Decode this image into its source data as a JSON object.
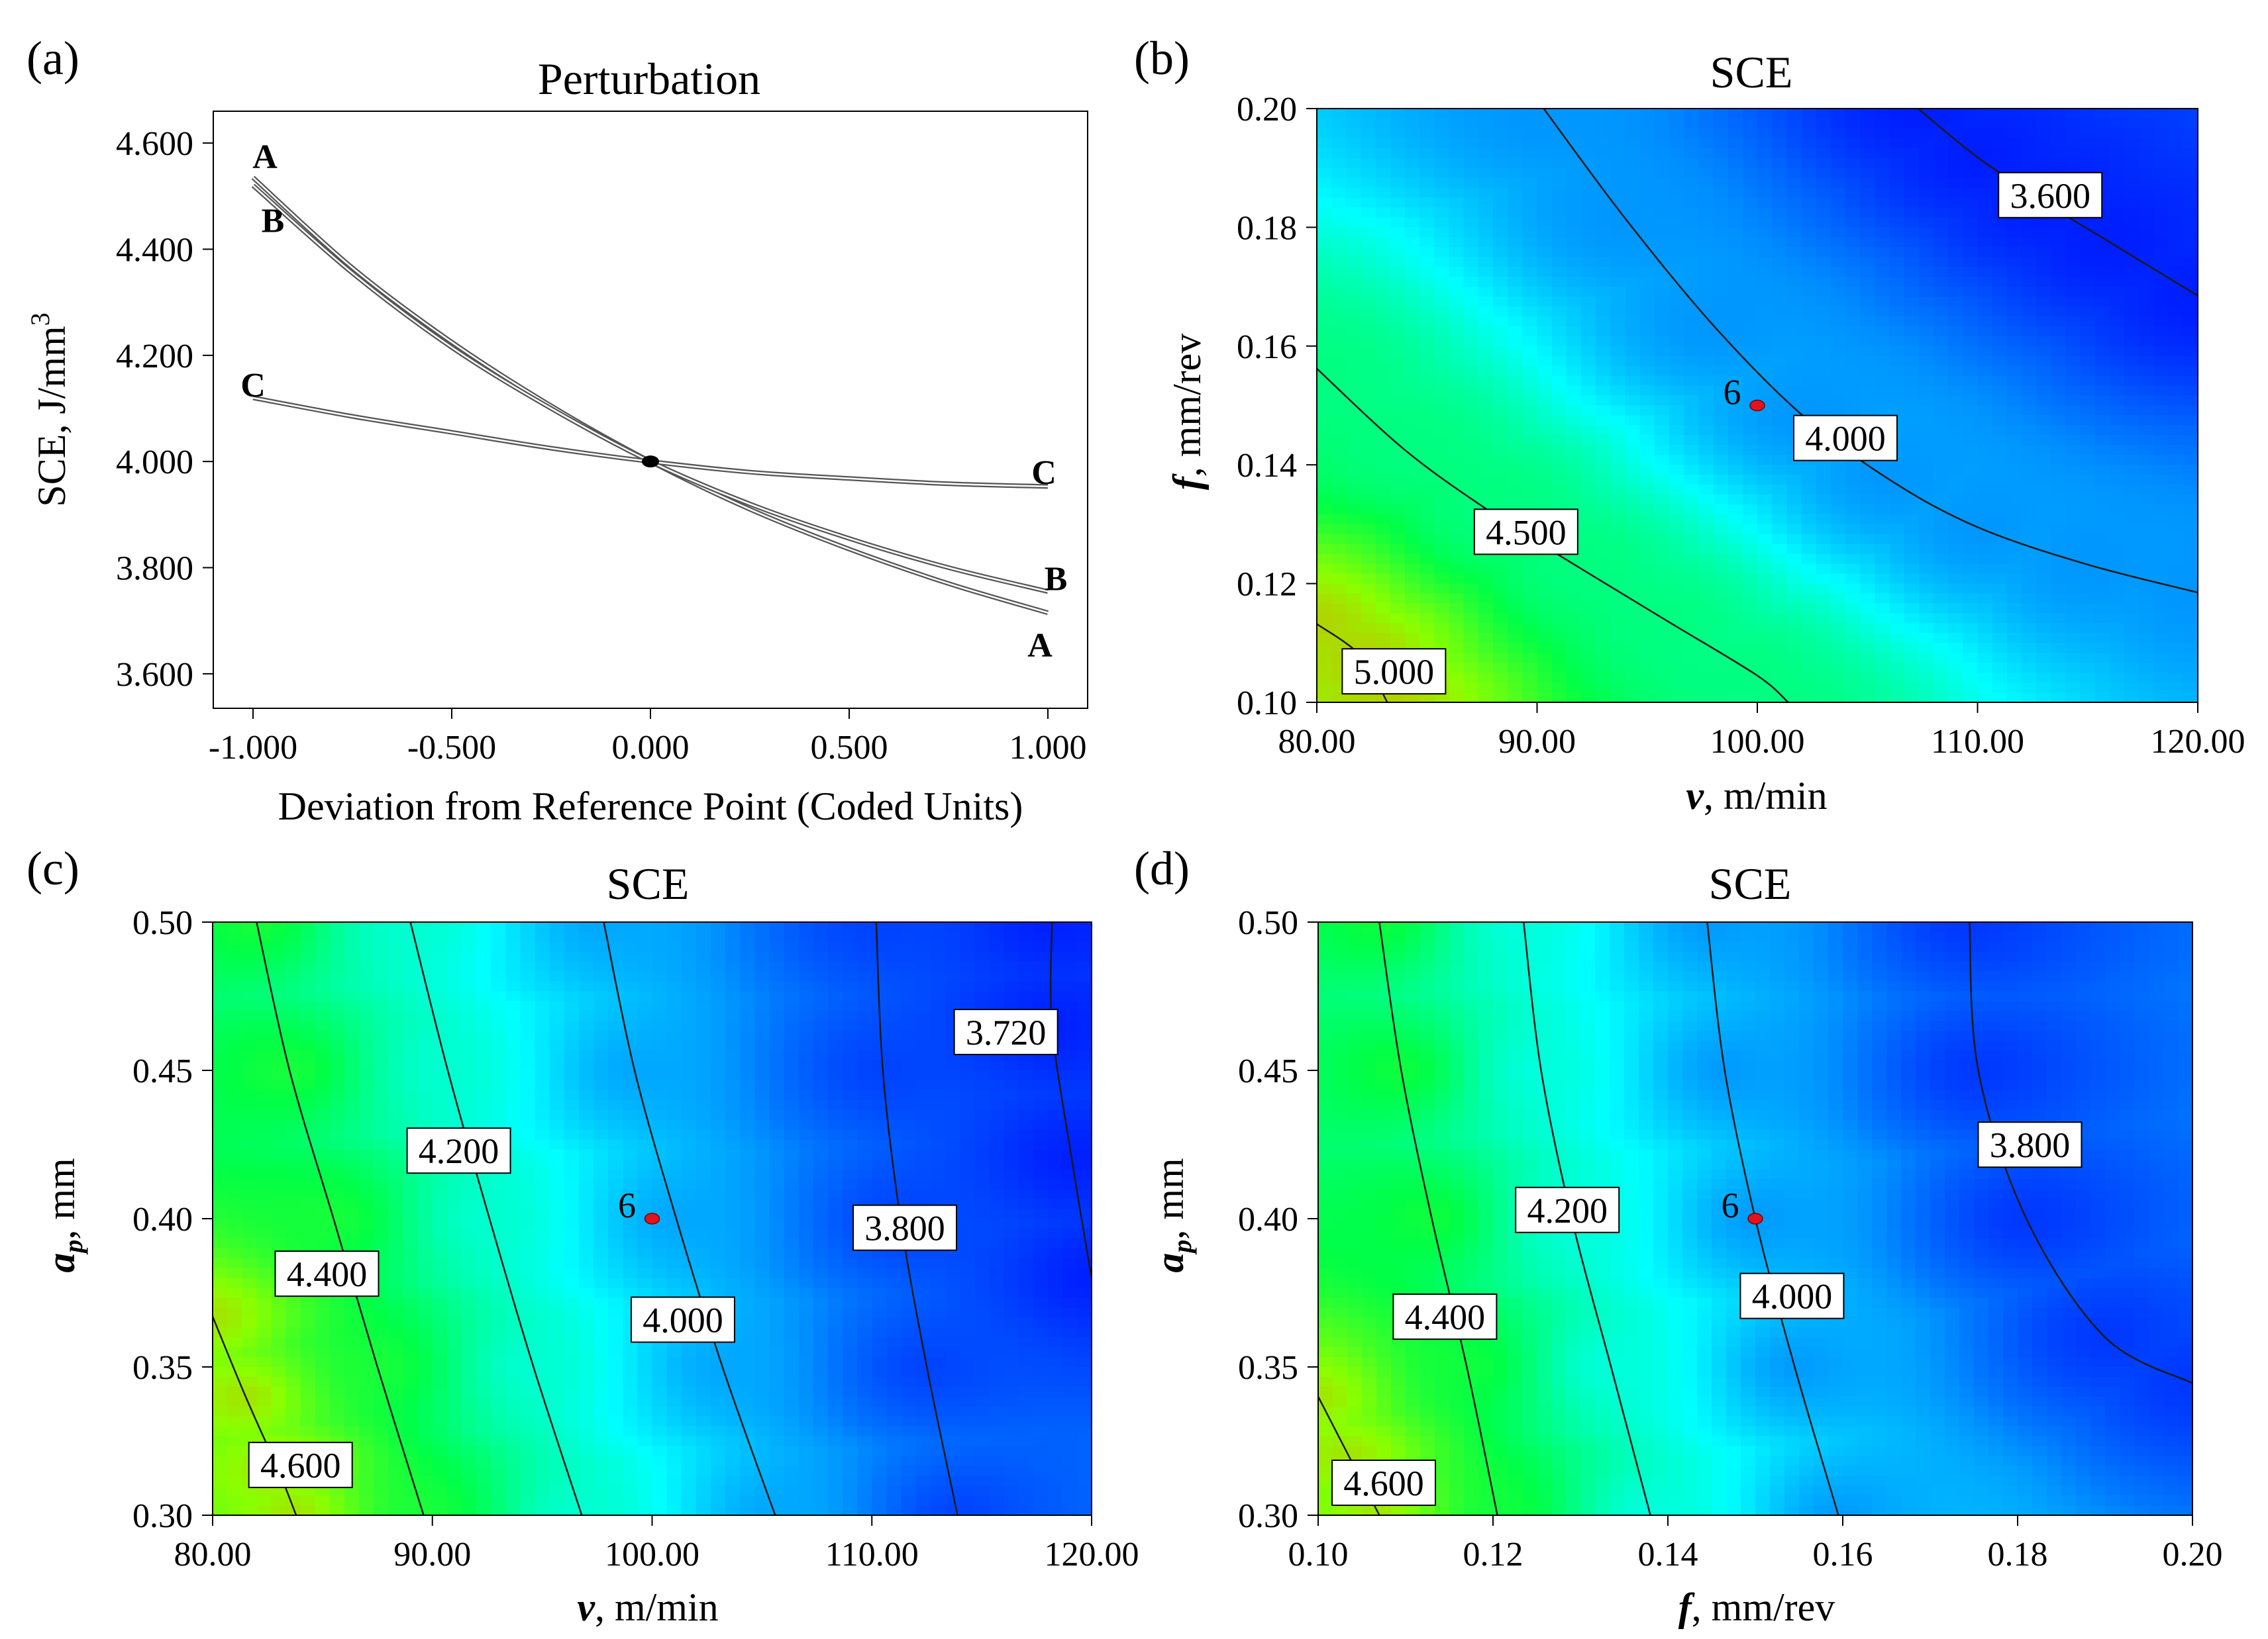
{
  "panels": {
    "a": {
      "label": "(a)"
    },
    "b": {
      "label": "(b)"
    },
    "c": {
      "label": "(c)"
    },
    "d": {
      "label": "(d)"
    }
  },
  "chart_data": [
    {
      "id": "a",
      "type": "line",
      "title": "Perturbation",
      "xlabel": "Deviation from Reference Point (Coded Units)",
      "ylabel": "SCE, J/mm",
      "ylabel_sup": "3",
      "xlim": [
        -1.1,
        1.1
      ],
      "ylim": [
        3.535,
        4.66
      ],
      "xticks": [
        -1,
        -0.5,
        0,
        0.5,
        1
      ],
      "xtick_labels": [
        "-1.000",
        "-0.500",
        "0.000",
        "0.500",
        "1.000"
      ],
      "yticks": [
        3.6,
        3.8,
        4.0,
        4.2,
        4.4,
        4.6
      ],
      "ytick_labels": [
        "3.600",
        "3.800",
        "4.000",
        "4.200",
        "4.400",
        "4.600"
      ],
      "reference_point": {
        "x": 0,
        "y": 4.0
      },
      "series": [
        {
          "name": "A",
          "x": [
            -1,
            -0.75,
            -0.5,
            -0.25,
            0,
            0.25,
            0.5,
            0.75,
            1
          ],
          "y": [
            4.535,
            4.365,
            4.225,
            4.105,
            4.0,
            3.91,
            3.835,
            3.77,
            3.715
          ]
        },
        {
          "name": "B",
          "x": [
            -1,
            -0.75,
            -0.5,
            -0.25,
            0,
            0.25,
            0.5,
            0.75,
            1
          ],
          "y": [
            4.52,
            4.355,
            4.215,
            4.1,
            4.0,
            3.92,
            3.855,
            3.8,
            3.755
          ]
        },
        {
          "name": "C",
          "x": [
            -1,
            -0.75,
            -0.5,
            -0.25,
            0,
            0.25,
            0.5,
            0.75,
            1
          ],
          "y": [
            4.12,
            4.085,
            4.055,
            4.025,
            4.0,
            3.98,
            3.968,
            3.958,
            3.953
          ]
        }
      ],
      "curve_labels": [
        {
          "text": "A",
          "x": -0.97,
          "y": 4.575
        },
        {
          "text": "B",
          "x": -0.95,
          "y": 4.455
        },
        {
          "text": "C",
          "x": -1.0,
          "y": 4.145
        },
        {
          "text": "C",
          "x": 0.99,
          "y": 3.98
        },
        {
          "text": "B",
          "x": 1.02,
          "y": 3.78
        },
        {
          "text": "A",
          "x": 0.98,
          "y": 3.655
        }
      ]
    },
    {
      "id": "b",
      "type": "heatmap",
      "title": "SCE",
      "xlabel_italic": "v",
      "xlabel_rest": ", m/min",
      "ylabel_italic": "f",
      "ylabel_rest": ", mm/rev",
      "xlim": [
        80,
        120
      ],
      "ylim": [
        0.1,
        0.2
      ],
      "xticks": [
        80,
        90,
        100,
        110,
        120
      ],
      "xtick_labels": [
        "80.00",
        "90.00",
        "100.00",
        "110.00",
        "120.00"
      ],
      "yticks": [
        0.1,
        0.12,
        0.14,
        0.16,
        0.18,
        0.2
      ],
      "ytick_labels": [
        "0.10",
        "0.12",
        "0.14",
        "0.16",
        "0.18",
        "0.20"
      ],
      "value_range": [
        3.5,
        5.2
      ],
      "contours": [
        {
          "level": "5.000",
          "points": [
            [
              80,
              0.1132
            ],
            [
              82,
              0.1078
            ],
            [
              83.2,
              0.1
            ]
          ],
          "label_at": [
            83.5,
            0.105
          ]
        },
        {
          "level": "4.500",
          "points": [
            [
              80,
              0.1562
            ],
            [
              84,
              0.1425
            ],
            [
              88,
              0.1318
            ],
            [
              92,
              0.1225
            ],
            [
              96,
              0.1135
            ],
            [
              100,
              0.1045
            ],
            [
              101.4,
              0.1
            ]
          ],
          "label_at": [
            89.5,
            0.1285
          ]
        },
        {
          "level": "4.000",
          "points": [
            [
              90.3,
              0.2
            ],
            [
              94,
              0.1815
            ],
            [
              98,
              0.1635
            ],
            [
              102,
              0.1485
            ],
            [
              106,
              0.1375
            ],
            [
              110,
              0.1295
            ],
            [
              115,
              0.1232
            ],
            [
              120,
              0.1185
            ]
          ],
          "label_at": [
            104,
            0.1443
          ]
        },
        {
          "level": "3.600",
          "points": [
            [
              107.3,
              0.2
            ],
            [
              110,
              0.1918
            ],
            [
              113,
              0.1843
            ],
            [
              116,
              0.1775
            ],
            [
              120,
              0.1685
            ]
          ],
          "label_at": [
            113.3,
            0.1852
          ]
        }
      ],
      "design_point": {
        "x": 100,
        "y": 0.15,
        "label": "6"
      }
    },
    {
      "id": "c",
      "type": "heatmap",
      "title": "SCE",
      "xlabel_italic": "v",
      "xlabel_rest": ", m/min",
      "ylabel_italic": "a",
      "ylabel_sub": "p",
      "ylabel_rest": ", mm",
      "xlim": [
        80,
        120
      ],
      "ylim": [
        0.3,
        0.5
      ],
      "xticks": [
        80,
        90,
        100,
        110,
        120
      ],
      "xtick_labels": [
        "80.00",
        "90.00",
        "100.00",
        "110.00",
        "120.00"
      ],
      "yticks": [
        0.3,
        0.35,
        0.4,
        0.45,
        0.5
      ],
      "ytick_labels": [
        "0.30",
        "0.35",
        "0.40",
        "0.45",
        "0.50"
      ],
      "value_range": [
        3.65,
        4.75
      ],
      "contours": [
        {
          "level": "4.600",
          "points": [
            [
              80,
              0.367
            ],
            [
              81.5,
              0.34
            ],
            [
              83,
              0.315
            ],
            [
              83.8,
              0.3
            ]
          ],
          "label_at": [
            84,
            0.3165
          ]
        },
        {
          "level": "4.400",
          "points": [
            [
              82,
              0.5
            ],
            [
              83.5,
              0.45
            ],
            [
              85.5,
              0.4
            ],
            [
              87.5,
              0.35
            ],
            [
              89.6,
              0.3
            ]
          ],
          "label_at": [
            85.2,
            0.381
          ]
        },
        {
          "level": "4.200",
          "points": [
            [
              89,
              0.5
            ],
            [
              90.7,
              0.45
            ],
            [
              92.6,
              0.4
            ],
            [
              94.6,
              0.35
            ],
            [
              96.8,
              0.3
            ]
          ],
          "label_at": [
            91.2,
            0.4225
          ]
        },
        {
          "level": "4.000",
          "points": [
            [
              97.8,
              0.5
            ],
            [
              99.2,
              0.45
            ],
            [
              101.1,
              0.4
            ],
            [
              103.2,
              0.35
            ],
            [
              105.6,
              0.3
            ]
          ],
          "label_at": [
            101.4,
            0.3655
          ]
        },
        {
          "level": "3.800",
          "points": [
            [
              110.2,
              0.5
            ],
            [
              110.5,
              0.45
            ],
            [
              111.3,
              0.4
            ],
            [
              112.5,
              0.35
            ],
            [
              113.9,
              0.3
            ]
          ],
          "label_at": [
            111.5,
            0.3965
          ]
        },
        {
          "level": "3.720",
          "points": [
            [
              118.2,
              0.5
            ],
            [
              118.2,
              0.465
            ],
            [
              119.1,
              0.42
            ],
            [
              120,
              0.38
            ]
          ],
          "label_at": [
            116.1,
            0.4625
          ]
        }
      ],
      "design_point": {
        "x": 100,
        "y": 0.4,
        "label": "6"
      }
    },
    {
      "id": "d",
      "type": "heatmap",
      "title": "SCE",
      "xlabel_italic": "f",
      "xlabel_rest": ", mm/rev",
      "ylabel_italic": "a",
      "ylabel_sub": "p",
      "ylabel_rest": ", mm",
      "xlim": [
        0.1,
        0.2
      ],
      "ylim": [
        0.3,
        0.5
      ],
      "xticks": [
        0.1,
        0.12,
        0.14,
        0.16,
        0.18,
        0.2
      ],
      "xtick_labels": [
        "0.10",
        "0.12",
        "0.14",
        "0.16",
        "0.18",
        "0.20"
      ],
      "yticks": [
        0.3,
        0.35,
        0.4,
        0.45,
        0.5
      ],
      "ytick_labels": [
        "0.30",
        "0.35",
        "0.40",
        "0.45",
        "0.50"
      ],
      "value_range": [
        3.68,
        4.75
      ],
      "contours": [
        {
          "level": "4.600",
          "points": [
            [
              0.1,
              0.34
            ],
            [
              0.1035,
              0.32
            ],
            [
              0.107,
              0.3
            ]
          ],
          "label_at": [
            0.1075,
            0.3105
          ]
        },
        {
          "level": "4.400",
          "points": [
            [
              0.107,
              0.5
            ],
            [
              0.1095,
              0.45
            ],
            [
              0.113,
              0.4
            ],
            [
              0.117,
              0.35
            ],
            [
              0.1205,
              0.3
            ]
          ],
          "label_at": [
            0.1145,
            0.3665
          ]
        },
        {
          "level": "4.200",
          "points": [
            [
              0.1235,
              0.5
            ],
            [
              0.1255,
              0.45
            ],
            [
              0.129,
              0.4
            ],
            [
              0.1335,
              0.35
            ],
            [
              0.138,
              0.3
            ]
          ],
          "label_at": [
            0.1285,
            0.4025
          ]
        },
        {
          "level": "4.000",
          "points": [
            [
              0.1445,
              0.5
            ],
            [
              0.1465,
              0.45
            ],
            [
              0.15,
              0.4
            ],
            [
              0.1545,
              0.35
            ],
            [
              0.1595,
              0.3
            ]
          ],
          "label_at": [
            0.1542,
            0.3735
          ]
        },
        {
          "level": "3.800",
          "points": [
            [
              0.1745,
              0.5
            ],
            [
              0.1755,
              0.45
            ],
            [
              0.181,
              0.4
            ],
            [
              0.19,
              0.36
            ],
            [
              0.2,
              0.3445
            ]
          ],
          "label_at": [
            0.1814,
            0.4245
          ]
        }
      ],
      "design_point": {
        "x": 0.15,
        "y": 0.4,
        "label": "6"
      }
    }
  ]
}
